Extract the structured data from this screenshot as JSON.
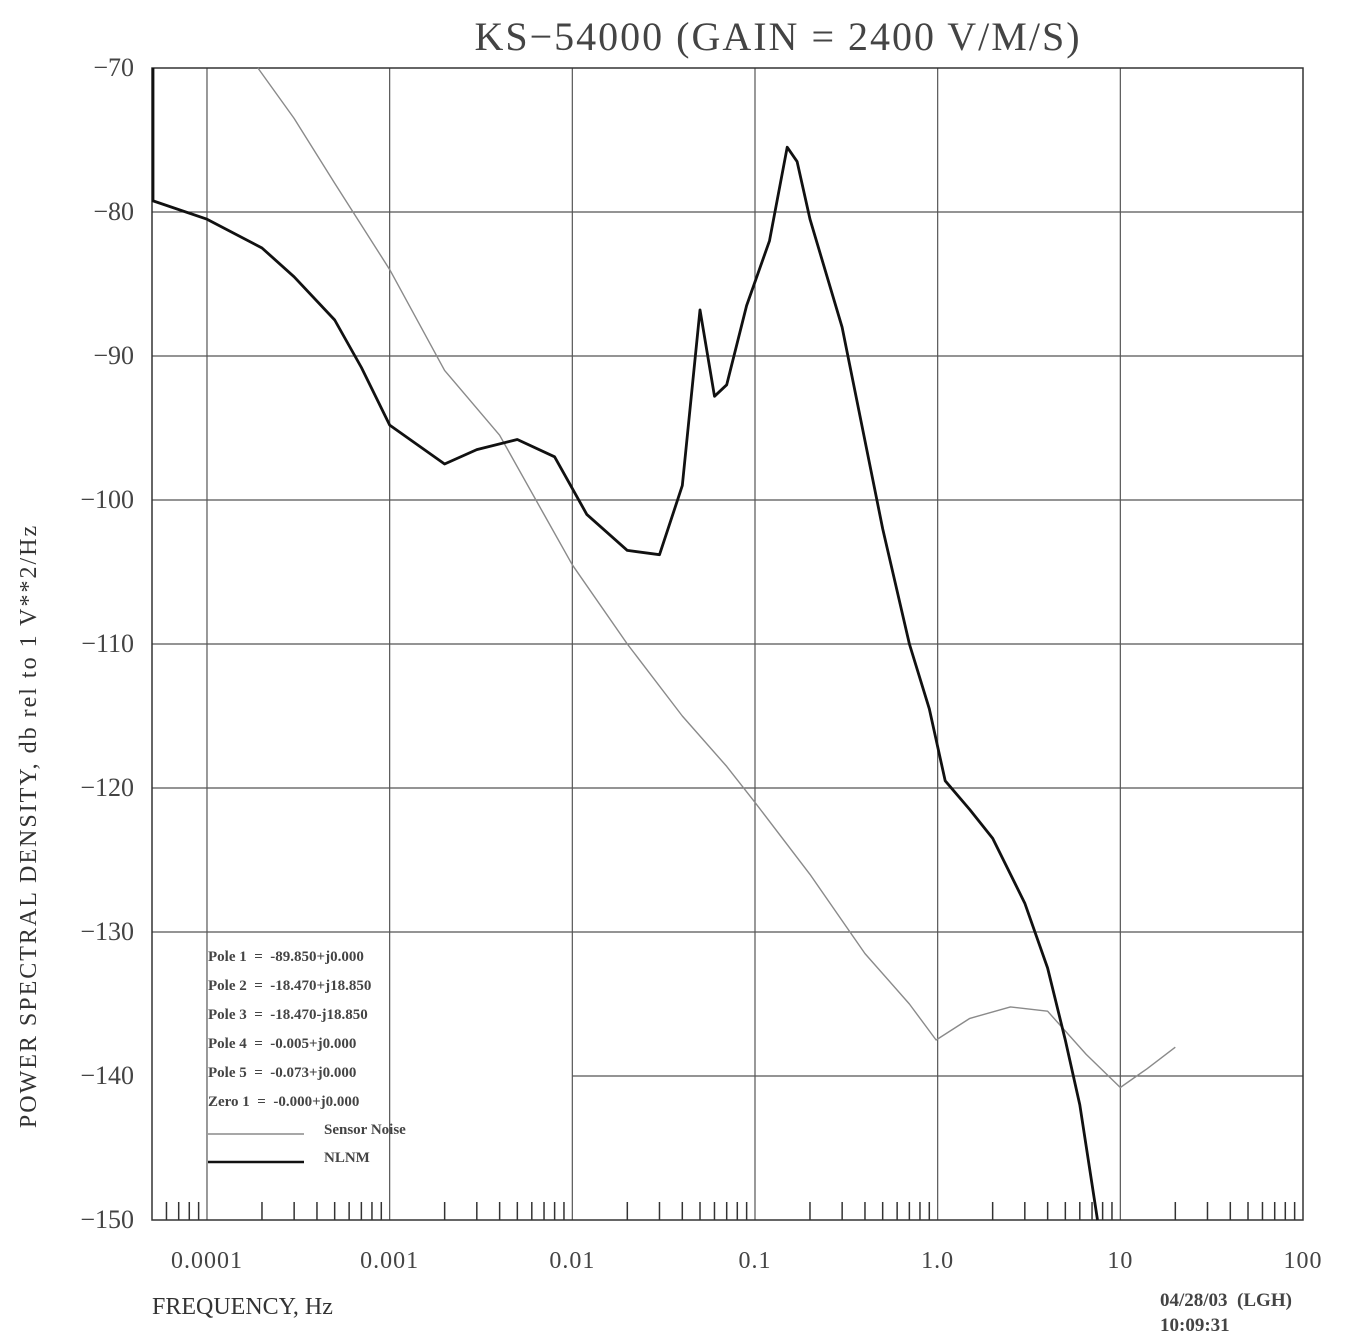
{
  "chart_data": {
    "type": "line",
    "title": "KS−54000 (GAIN = 2400 V/M/S)",
    "xlabel": "FREQUENCY, Hz",
    "ylabel": "POWER SPECTRAL DENSITY, db rel to 1 V**2/Hz",
    "x_scale": "log",
    "xlim": [
      5e-05,
      100
    ],
    "ylim": [
      -150,
      -70
    ],
    "x_ticks": [
      0.0001,
      0.001,
      0.01,
      0.1,
      1.0,
      10,
      100
    ],
    "x_tick_labels": [
      "0.0001",
      "0.001",
      "0.01",
      "0.1",
      "1.0",
      "10",
      "100"
    ],
    "y_ticks": [
      -70,
      -80,
      -90,
      -100,
      -110,
      -120,
      -130,
      -140,
      -150
    ],
    "y_tick_labels": [
      "-70",
      "-80",
      "-90",
      "-100",
      "-110",
      "-120",
      "-130",
      "-140",
      "-150"
    ],
    "grid": true,
    "series": [
      {
        "name": "Sensor Noise",
        "color": "#8a8a8a",
        "style": "thin",
        "points": [
          [
            0.00019,
            -70
          ],
          [
            0.0003,
            -73.5
          ],
          [
            0.0005,
            -78
          ],
          [
            0.001,
            -84
          ],
          [
            0.002,
            -91
          ],
          [
            0.004,
            -95.5
          ],
          [
            0.007,
            -101
          ],
          [
            0.01,
            -104.5
          ],
          [
            0.02,
            -110
          ],
          [
            0.04,
            -115
          ],
          [
            0.07,
            -118.5
          ],
          [
            0.1,
            -121
          ],
          [
            0.2,
            -126
          ],
          [
            0.4,
            -131.5
          ],
          [
            0.7,
            -135
          ],
          [
            0.98,
            -137.5
          ],
          [
            1.5,
            -136
          ],
          [
            2.5,
            -135.2
          ],
          [
            4.0,
            -135.5
          ],
          [
            6.5,
            -138.5
          ],
          [
            10,
            -140.8
          ],
          [
            14,
            -139.5
          ],
          [
            20,
            -138
          ]
        ]
      },
      {
        "name": "NLNM",
        "color": "#111111",
        "style": "thick",
        "points": [
          [
            5e-05,
            -79.2
          ],
          [
            0.0001,
            -80.5
          ],
          [
            0.0002,
            -82.5
          ],
          [
            0.0003,
            -84.5
          ],
          [
            0.0005,
            -87.5
          ],
          [
            0.0007,
            -90.8
          ],
          [
            0.001,
            -94.8
          ],
          [
            0.002,
            -97.5
          ],
          [
            0.003,
            -96.5
          ],
          [
            0.005,
            -95.8
          ],
          [
            0.008,
            -97
          ],
          [
            0.012,
            -101
          ],
          [
            0.02,
            -103.5
          ],
          [
            0.03,
            -103.8
          ],
          [
            0.04,
            -99
          ],
          [
            0.05,
            -86.8
          ],
          [
            0.06,
            -92.8
          ],
          [
            0.07,
            -92
          ],
          [
            0.09,
            -86.5
          ],
          [
            0.12,
            -82
          ],
          [
            0.15,
            -75.5
          ],
          [
            0.17,
            -76.5
          ],
          [
            0.2,
            -80.5
          ],
          [
            0.3,
            -88
          ],
          [
            0.5,
            -102
          ],
          [
            0.7,
            -110
          ],
          [
            0.9,
            -114.5
          ],
          [
            1.1,
            -119.5
          ],
          [
            1.5,
            -121.5
          ],
          [
            2.0,
            -123.5
          ],
          [
            3.0,
            -128
          ],
          [
            4.0,
            -132.5
          ],
          [
            5.0,
            -137.5
          ],
          [
            6.0,
            -142
          ],
          [
            7.0,
            -147.5
          ],
          [
            7.5,
            -150
          ]
        ]
      }
    ],
    "vertical_spike": {
      "x": 5e-05,
      "y_from": -79.2,
      "y_to": -70
    },
    "legend_placement": "bottom-left",
    "legend": {
      "poles": [
        "Pole 1  =  -89.850+j0.000",
        "Pole 2  =  -18.470+j18.850",
        "Pole 3  =  -18.470-j18.850",
        "Pole 4  =  -0.005+j0.000",
        "Pole 5  =  -0.073+j0.000",
        "Zero 1  =  -0.000+j0.000"
      ],
      "entries": [
        {
          "label": "Sensor Noise",
          "color": "#8a8a8a"
        },
        {
          "label": "NLNM",
          "color": "#111111"
        }
      ]
    },
    "stamp": {
      "date_line": "04/28/03  (LGH)",
      "time_line": "10:09:31"
    }
  }
}
